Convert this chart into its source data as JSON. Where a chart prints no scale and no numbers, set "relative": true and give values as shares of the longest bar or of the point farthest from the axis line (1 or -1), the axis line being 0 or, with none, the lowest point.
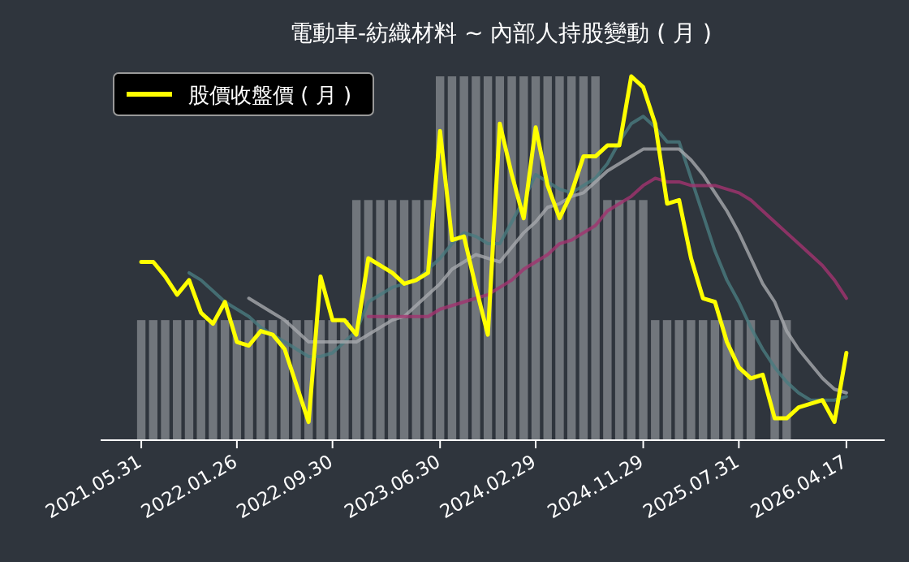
{
  "chart_data": {
    "type": "line",
    "title": "電動車-紡織材料 ~ 內部人持股變動 ( 月 )",
    "relative": true,
    "legend": "top left",
    "grid": false,
    "categories": [
      "2021.05.31",
      null,
      null,
      null,
      null,
      null,
      null,
      null,
      "2022.01.26",
      null,
      null,
      null,
      null,
      null,
      null,
      null,
      "2022.09.30",
      null,
      null,
      null,
      null,
      null,
      null,
      null,
      null,
      "2023.06.30",
      null,
      null,
      null,
      null,
      null,
      null,
      null,
      "2024.02.29",
      null,
      null,
      null,
      null,
      null,
      null,
      null,
      null,
      "2024.11.29",
      null,
      null,
      null,
      null,
      null,
      null,
      null,
      "2025.07.31",
      null,
      null,
      null,
      null,
      null,
      null,
      null,
      null,
      "2026.04.17"
    ],
    "series": [
      {
        "type": "bar",
        "color": "#9ea1a6",
        "values": [
          0.33,
          0.33,
          0.33,
          0.33,
          0.33,
          0.33,
          0.33,
          0.33,
          0.33,
          0.33,
          0.33,
          0.33,
          0.33,
          0.33,
          0.33,
          0.33,
          0.33,
          0.33,
          0.66,
          0.66,
          0.66,
          0.66,
          0.66,
          0.66,
          0.66,
          1,
          1,
          1,
          1,
          1,
          1,
          1,
          1,
          1,
          1,
          1,
          1,
          1,
          1,
          0.66,
          0.66,
          0.66,
          0.66,
          0.33,
          0.33,
          0.33,
          0.33,
          0.33,
          0.33,
          0.33,
          0.33,
          0.33,
          0,
          0.33,
          0.33,
          0,
          0,
          0,
          0,
          0
        ]
      },
      {
        "color": "#4a7c80",
        "values": [
          null,
          null,
          null,
          null,
          0.46,
          0.44,
          0.41,
          0.38,
          0.36,
          0.34,
          0.31,
          0.29,
          0.27,
          0.25,
          0.23,
          0.23,
          0.24,
          0.27,
          0.3,
          0.38,
          0.4,
          0.42,
          0.43,
          0.44,
          0.47,
          0.5,
          0.54,
          0.57,
          0.56,
          0.54,
          0.54,
          0.6,
          0.66,
          0.73,
          0.71,
          0.69,
          0.68,
          0.7,
          0.72,
          0.76,
          0.82,
          0.87,
          0.89,
          0.86,
          0.82,
          0.82,
          0.72,
          0.62,
          0.52,
          0.44,
          0.38,
          0.31,
          0.25,
          0.2,
          0.16,
          0.13,
          0.11,
          0.11,
          0.11,
          0.12
        ]
      },
      {
        "color": "#a6a9ad",
        "values": [
          null,
          null,
          null,
          null,
          null,
          null,
          null,
          null,
          null,
          0.39,
          0.37,
          0.35,
          0.33,
          0.3,
          0.27,
          0.27,
          0.27,
          0.27,
          0.27,
          0.29,
          0.31,
          0.33,
          0.34,
          0.37,
          0.4,
          0.43,
          0.47,
          0.49,
          0.51,
          0.5,
          0.49,
          0.53,
          0.57,
          0.6,
          0.64,
          0.65,
          0.67,
          0.68,
          0.71,
          0.74,
          0.76,
          0.78,
          0.8,
          0.8,
          0.8,
          0.8,
          0.77,
          0.73,
          0.68,
          0.63,
          0.57,
          0.5,
          0.43,
          0.38,
          0.3,
          0.25,
          0.21,
          0.17,
          0.14,
          0.13
        ]
      },
      {
        "color": "#a3336f",
        "values": [
          null,
          null,
          null,
          null,
          null,
          null,
          null,
          null,
          null,
          null,
          null,
          null,
          null,
          null,
          null,
          null,
          null,
          null,
          null,
          0.34,
          0.34,
          0.34,
          0.34,
          0.34,
          0.34,
          0.36,
          0.37,
          0.38,
          0.39,
          0.4,
          0.42,
          0.44,
          0.47,
          0.49,
          0.51,
          0.54,
          0.55,
          0.57,
          0.59,
          0.63,
          0.65,
          0.67,
          0.7,
          0.72,
          0.71,
          0.71,
          0.7,
          0.7,
          0.7,
          0.69,
          0.68,
          0.66,
          0.63,
          0.6,
          0.57,
          0.54,
          0.51,
          0.48,
          0.44,
          0.39
        ]
      },
      {
        "name": "股價收盤價 ( 月 )",
        "color": "#ffff00",
        "values": [
          0.49,
          0.49,
          0.45,
          0.4,
          0.44,
          0.35,
          0.32,
          0.38,
          0.27,
          0.26,
          0.3,
          0.29,
          0.25,
          0.15,
          0.05,
          0.45,
          0.33,
          0.33,
          0.29,
          0.5,
          0.48,
          0.46,
          0.43,
          0.44,
          0.46,
          0.85,
          0.55,
          0.56,
          0.42,
          0.29,
          0.87,
          0.73,
          0.61,
          0.86,
          0.7,
          0.61,
          0.68,
          0.78,
          0.78,
          0.81,
          0.81,
          1,
          0.97,
          0.87,
          0.65,
          0.66,
          0.5,
          0.39,
          0.38,
          0.27,
          0.2,
          0.17,
          0.18,
          0.06,
          0.06,
          0.09,
          0.1,
          0.11,
          0.05,
          0.24
        ]
      }
    ]
  }
}
